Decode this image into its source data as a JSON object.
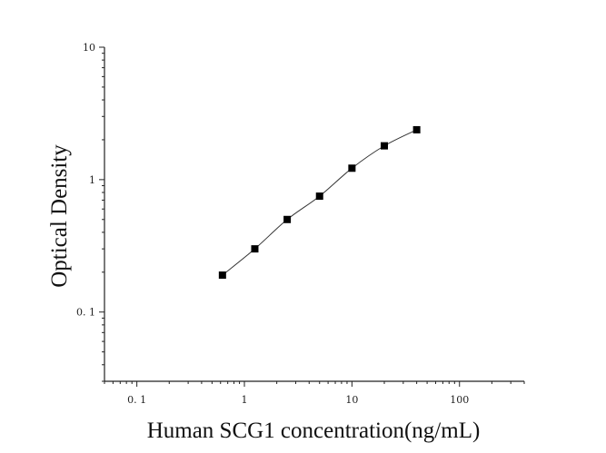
{
  "chart_data": {
    "type": "scatter",
    "title": "",
    "xlabel": "Human SCG1 concentration(ng/mL)",
    "ylabel": "Optical Density",
    "xscale": "log",
    "yscale": "log",
    "xlim": [
      0.05,
      400
    ],
    "ylim": [
      0.03,
      10
    ],
    "grid": false,
    "legend": "none",
    "x_ticks": [
      {
        "value": 0.1,
        "label": "0. 1"
      },
      {
        "value": 1,
        "label": "1"
      },
      {
        "value": 10,
        "label": "10"
      },
      {
        "value": 100,
        "label": "100"
      }
    ],
    "y_ticks": [
      {
        "value": 0.1,
        "label": "0. 1"
      },
      {
        "value": 1,
        "label": "1"
      },
      {
        "value": 10,
        "label": "10"
      }
    ],
    "series": [
      {
        "x": [
          0.625,
          1.25,
          2.5,
          5,
          10,
          20,
          40
        ],
        "y": [
          0.19,
          0.3,
          0.5,
          0.75,
          1.22,
          1.8,
          2.38
        ],
        "fit_curve": true
      }
    ],
    "colors": {
      "marker": "#000000",
      "curve": "#333333",
      "axis": "#222222"
    }
  }
}
